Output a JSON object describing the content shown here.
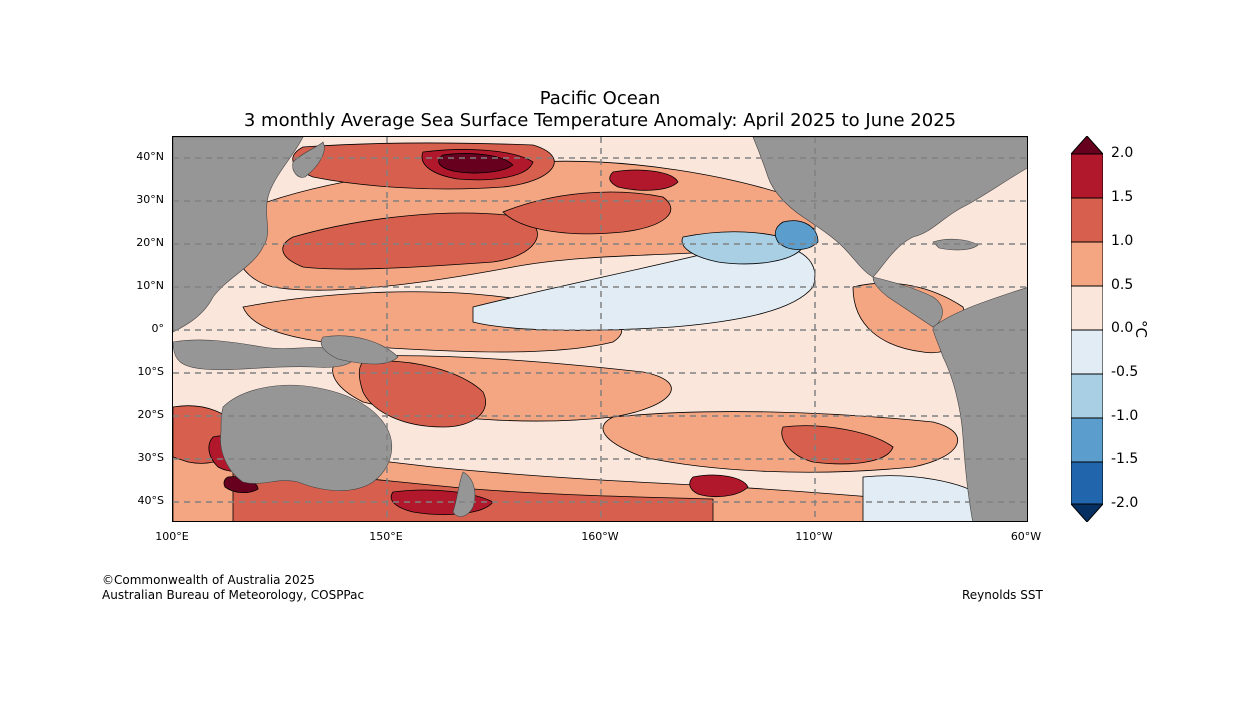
{
  "title": {
    "line1": "Pacific Ocean",
    "line2": "3 monthly Average Sea Surface Temperature Anomaly: April 2025 to June 2025"
  },
  "axes": {
    "lat_labels": [
      "40°N",
      "30°N",
      "20°N",
      "10°N",
      "0°",
      "10°S",
      "20°S",
      "30°S",
      "40°S"
    ],
    "lon_labels": [
      "100°E",
      "150°E",
      "160°W",
      "110°W",
      "60°W"
    ]
  },
  "colorbar": {
    "unit": "°C",
    "ticks": [
      "2.0",
      "1.5",
      "1.0",
      "0.5",
      "0.0",
      "-0.5",
      "-1.0",
      "-1.5",
      "-2.0"
    ],
    "colors": [
      "#67001f",
      "#b2182b",
      "#d6604d",
      "#f4a582",
      "#fbe6dc",
      "#e1ecf4",
      "#a9cfe5",
      "#5b9dcc",
      "#2166ac",
      "#053061"
    ]
  },
  "palette": {
    "land": "#969696",
    "ocean_base": "#f8e3d6",
    "grid": "#808080"
  },
  "credits": {
    "copyright": "©Commonwealth of Australia 2025",
    "org": "Australian Bureau of Meteorology, COSPPac",
    "source": "Reynolds SST"
  }
}
